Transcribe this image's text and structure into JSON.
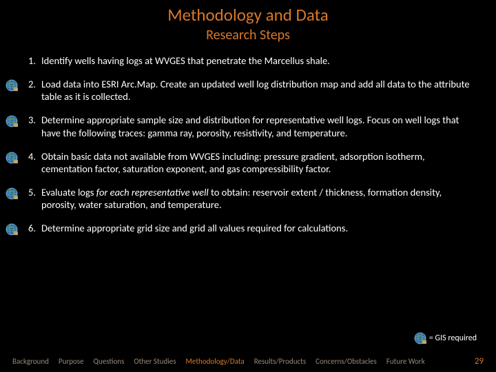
{
  "title": "Methodology and Data",
  "subtitle": "Research Steps",
  "accent_color": "#d97828",
  "background_color": "#000000",
  "text_color": "#ffffff",
  "footer_color": "#9a8a7a",
  "steps": [
    {
      "num": "1.",
      "text": "Identify wells having logs at WVGES that penetrate the Marcellus shale.",
      "gis": false
    },
    {
      "num": "2.",
      "text": "Load data into ESRI Arc.Map.  Create an updated well log distribution map and add all data to the attribute table as it is collected.",
      "gis": true
    },
    {
      "num": "3.",
      "text": "Determine appropriate sample size and distribution for representative well logs.  Focus on well logs that have the following traces:  gamma ray, porosity, resistivity, and temperature.",
      "gis": true
    },
    {
      "num": "4.",
      "text": "Obtain basic data not available from WVGES including:  pressure gradient, adsorption isotherm, cementation factor, saturation exponent, and gas compressibility factor.",
      "gis": true
    },
    {
      "num": "5.",
      "pre": "Evaluate logs ",
      "ital": "for each representative well",
      "post": " to obtain:  reservoir extent / thickness, formation density, porosity, water saturation, and temperature.",
      "gis": true
    },
    {
      "num": "6.",
      "text": "Determine appropriate grid size and grid all values required for calculations.",
      "gis": true
    }
  ],
  "legend_text": "= GIS required",
  "footer": {
    "items": [
      {
        "label": "Background",
        "active": false
      },
      {
        "label": "Purpose",
        "active": false
      },
      {
        "label": "Questions",
        "active": false
      },
      {
        "label": "Other Studies",
        "active": false
      },
      {
        "label": "Methodology/Data",
        "active": true
      },
      {
        "label": "Results/Products",
        "active": false
      },
      {
        "label": "Concerns/Obstacles",
        "active": false
      },
      {
        "label": "Future Work",
        "active": false
      }
    ],
    "page_number": "29"
  }
}
